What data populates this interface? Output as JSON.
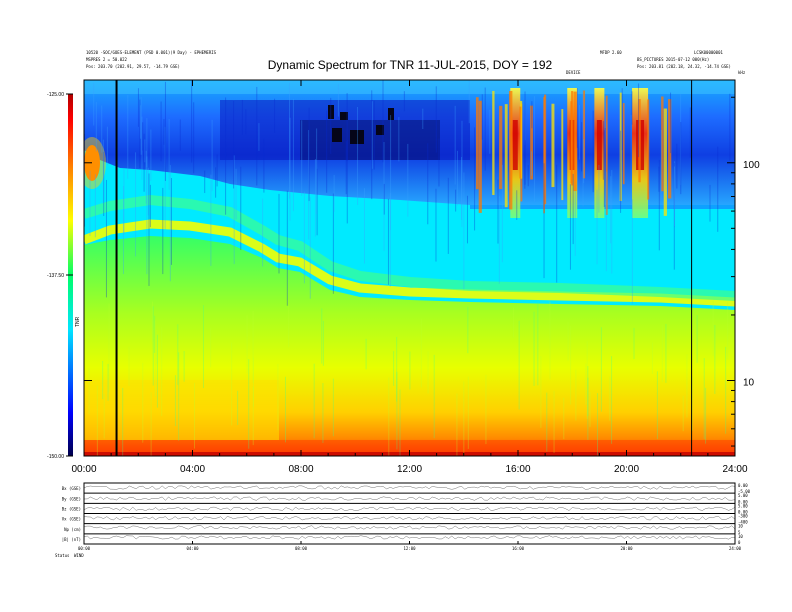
{
  "header": {
    "title": "Dynamic Spectrum for TNR 11-JUL-2015, DOY = 192",
    "left_line1": "10520 -SOC/GOES-ELEMENT (PSD 0.001)(9 Day) - EPHEMERIS",
    "left_line2": "MSPRES 2 = 50.022",
    "left_pos": "Pos:  203.70 (202.91, 29.57, -14.79 GSE)",
    "right_top": "LCSK00000001",
    "right_mid": "MFDP 2.60",
    "right_line2": "BS_PICTURES 2015-07-12 000(Hz)",
    "right_pos": "Pos:  203.81 (202.18, 24.32, -14.74 GSE)",
    "center_small": "DEVICE",
    "corner_small": "kHz"
  },
  "chart_data": [
    {
      "type": "heatmap",
      "title": "Dynamic Spectrum for TNR 11-JUL-2015, DOY = 192",
      "x": {
        "label": "",
        "range": [
          0,
          24
        ],
        "ticks": [
          0,
          4,
          8,
          12,
          16,
          20,
          24
        ],
        "tick_labels": [
          "00:00",
          "04:00",
          "08:00",
          "12:00",
          "16:00",
          "20:00",
          "24:00"
        ]
      },
      "y": {
        "label": "kHz",
        "scale": "log",
        "range": [
          4.5,
          240
        ],
        "ticks": [
          10,
          100
        ],
        "tick_labels": [
          "10",
          "100"
        ]
      },
      "colorbar": {
        "label": "TNR",
        "range": [
          -150.0,
          -125.0
        ],
        "ticks": [
          -125.0,
          -137.5,
          -150.0
        ],
        "tick_labels": [
          "-125.00",
          "-137.50",
          "-150.00"
        ],
        "colors": [
          "#00004a",
          "#0000ff",
          "#00e6ff",
          "#00ff66",
          "#ffff00",
          "#ff8000",
          "#ff0000",
          "#b00000"
        ]
      },
      "band_features": [
        {
          "name": "background emission upper edge",
          "points": [
            [
              0,
              60
            ],
            [
              2,
              52
            ],
            [
              4,
              48
            ],
            [
              6,
              42
            ],
            [
              7,
              36
            ],
            [
              8,
              33
            ],
            [
              10,
              27
            ],
            [
              12,
              24
            ],
            [
              14,
              23
            ],
            [
              18,
              22
            ],
            [
              22,
              21
            ],
            [
              24,
              21
            ]
          ]
        },
        {
          "name": "low frequency enhancement",
          "points": [
            [
              0,
              8
            ],
            [
              4,
              7.5
            ],
            [
              7,
              7
            ],
            [
              7.2,
              5.5
            ],
            [
              24,
              5.5
            ]
          ]
        }
      ],
      "burst_times_hours": [
        15.9,
        18.0,
        19.0,
        20.5
      ],
      "vertical_markers_hours": [
        1.2,
        22.4
      ]
    },
    {
      "type": "line",
      "title": "",
      "x_tick_labels": [
        "00:00",
        "04:00",
        "08:00",
        "12:00",
        "16:00",
        "20:00",
        "24:00"
      ],
      "panels": [
        {
          "label": "Bx (GSE)",
          "right_ticks": [
            "0.00",
            "-5.00"
          ]
        },
        {
          "label": "By (GSE)",
          "right_ticks": [
            "5.00",
            "0.00"
          ]
        },
        {
          "label": "Bz (GSE)",
          "right_ticks": [
            "5.00",
            "0.00"
          ]
        },
        {
          "label": "Vx (GSE)",
          "right_ticks": [
            "-300",
            "-400"
          ]
        },
        {
          "label": "Np (cm)",
          "right_ticks": [
            "10",
            "5"
          ]
        },
        {
          "label": "|B| (nT)",
          "right_ticks": [
            "10",
            "0"
          ]
        }
      ],
      "bottom_label": "Status",
      "bottom_value": "WIND"
    }
  ]
}
